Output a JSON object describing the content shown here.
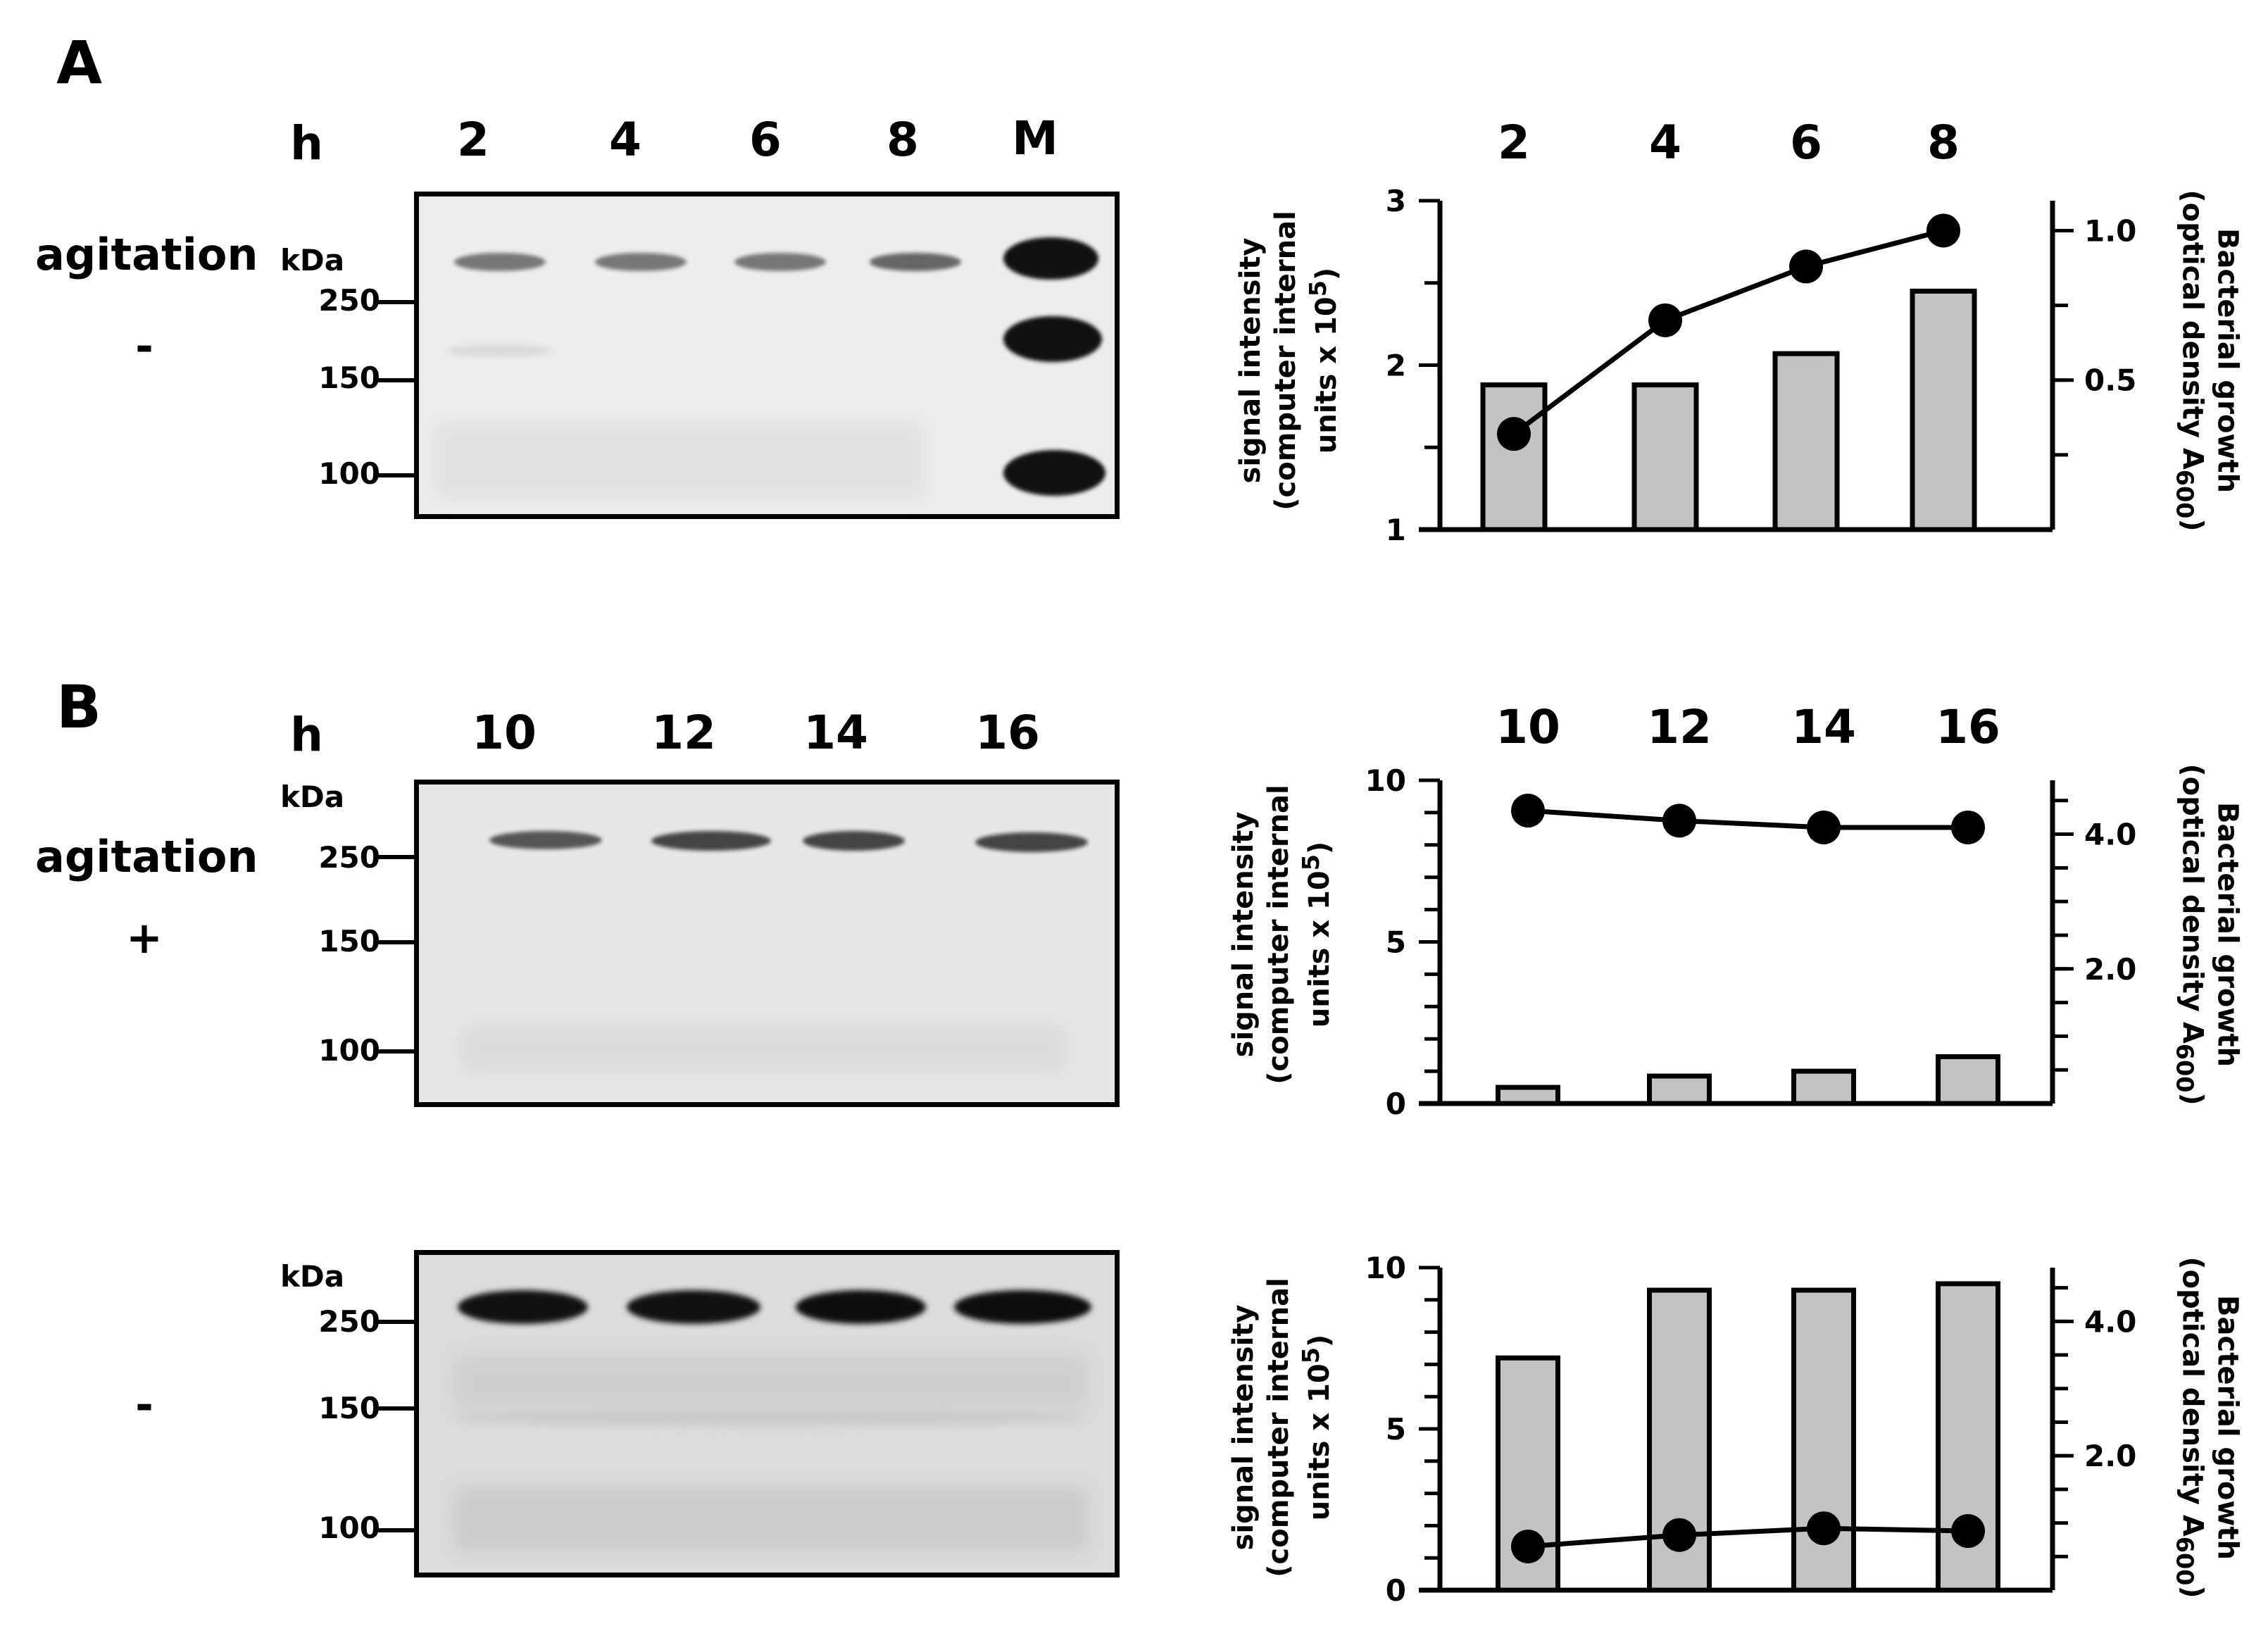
{
  "panel_a": {
    "letter": "A",
    "h_label": "h",
    "lanes": [
      "2",
      "4",
      "6",
      "8",
      "M"
    ],
    "condition": "agitation",
    "sign": "-",
    "kda_label": "kDa",
    "mw_markers": [
      "250",
      "150",
      "100"
    ]
  },
  "panel_b": {
    "letter": "B",
    "h_label": "h",
    "lanes": [
      "10",
      "12",
      "14",
      "16"
    ],
    "condition": "agitation",
    "sign_top": "+",
    "sign_bottom": "-",
    "kda_label": "kDa",
    "mw_markers": [
      "250",
      "150",
      "100"
    ]
  },
  "axis_titles": {
    "left_line1": "signal intensity",
    "left_line2": "(computer internal",
    "left_line3": "units x 10",
    "left_sup": "5",
    "left_close": ")",
    "right_line1": "Bacterial growth",
    "right_line2": "(optical density A",
    "right_sub": "600",
    "right_close": ")"
  },
  "chart_data": [
    {
      "type": "bar",
      "panel": "A",
      "categories": [
        "2",
        "4",
        "6",
        "8"
      ],
      "bar_values": [
        1.88,
        1.88,
        2.07,
        2.45
      ],
      "line_values": [
        0.32,
        0.7,
        0.88,
        1.0
      ],
      "ylim_left": [
        1,
        3
      ],
      "yticks_left": [
        "1",
        "2",
        "3"
      ],
      "ylim_right": [
        0,
        1.1
      ],
      "yticks_right": [
        "0.5",
        "1.0"
      ]
    },
    {
      "type": "bar",
      "panel": "B agitation +",
      "categories": [
        "10",
        "12",
        "14",
        "16"
      ],
      "bar_values": [
        0.5,
        0.85,
        1.0,
        1.45
      ],
      "line_values": [
        4.35,
        4.2,
        4.1,
        4.1
      ],
      "ylim_left": [
        0,
        10
      ],
      "yticks_left": [
        "0",
        "5",
        "10"
      ],
      "ylim_right": [
        0,
        4.8
      ],
      "yticks_right": [
        "2.0",
        "4.0"
      ]
    },
    {
      "type": "bar",
      "panel": "B agitation -",
      "categories": [
        "10",
        "12",
        "14",
        "16"
      ],
      "bar_values": [
        7.2,
        9.3,
        9.3,
        9.5
      ],
      "line_values": [
        0.65,
        0.82,
        0.92,
        0.88
      ],
      "ylim_left": [
        0,
        10
      ],
      "yticks_left": [
        "0",
        "5",
        "10"
      ],
      "ylim_right": [
        0,
        4.8
      ],
      "yticks_right": [
        "2.0",
        "4.0"
      ]
    }
  ],
  "colors": {
    "bar_fill": "#c3c3c3",
    "line": "#000000",
    "gel_band": "#1a1a1a"
  }
}
